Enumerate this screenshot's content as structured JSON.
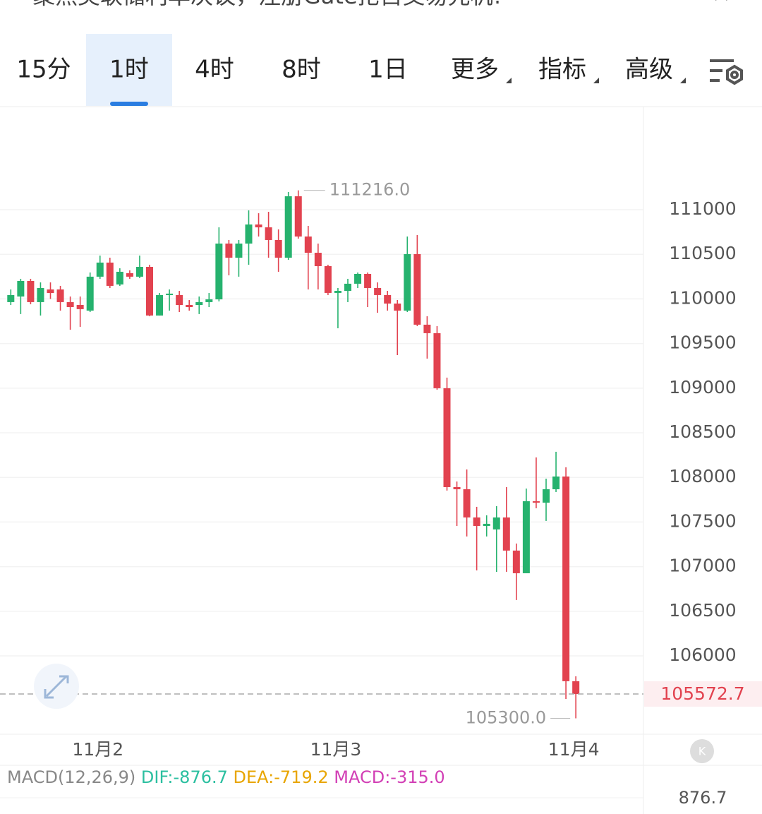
{
  "banner": "聚焦美联储利率决议，注册Gate抢占交易先机!",
  "tabs": [
    "15分",
    "1时",
    "4时",
    "8时",
    "1日",
    "更多",
    "指标",
    "高级"
  ],
  "active_tab": 1,
  "chart_data": {
    "type": "candlestick",
    "categories": [
      null,
      null,
      null,
      null,
      null,
      null,
      null,
      null,
      null,
      "11月2",
      null,
      null,
      null,
      null,
      null,
      null,
      null,
      null,
      null,
      null,
      null,
      null,
      null,
      null,
      null,
      null,
      null,
      null,
      null,
      null,
      null,
      null,
      null,
      "11月3",
      null,
      null,
      null,
      null,
      null,
      null,
      null,
      null,
      null,
      null,
      null,
      null,
      null,
      null,
      null,
      null,
      null,
      null,
      null,
      null,
      null,
      null,
      null,
      "11月4"
    ],
    "open": [
      109964,
      110027,
      110201,
      109964,
      110106,
      110106,
      109964,
      109932,
      109869,
      110249,
      110407,
      110162,
      110288,
      110249,
      110359,
      109814,
      110043,
      110043,
      109932,
      109932,
      109964,
      109995,
      110620,
      110462,
      110620,
      110834,
      110802,
      110660,
      110462,
      111150,
      110699,
      110517,
      110367,
      110067,
      110090,
      110170,
      110280,
      110122,
      110043,
      109948,
      109869,
      110502,
      109711,
      109616,
      108999,
      107891,
      107867,
      107551,
      107456,
      107417,
      107551,
      107180,
      106926,
      107733,
      107717,
      107867,
      108010,
      105716
    ],
    "close": [
      110043,
      110201,
      109964,
      110122,
      110066,
      109964,
      109908,
      109885,
      110249,
      110407,
      110146,
      110304,
      110249,
      110359,
      109814,
      110043,
      110059,
      109932,
      109908,
      109964,
      109995,
      110620,
      110462,
      110620,
      110834,
      110802,
      110660,
      110462,
      111150,
      110699,
      110517,
      110367,
      110067,
      110090,
      110170,
      110280,
      110122,
      110043,
      109948,
      109869,
      110502,
      109711,
      109616,
      108999,
      107891,
      107867,
      107551,
      107456,
      107480,
      107551,
      107180,
      106926,
      107733,
      107717,
      107867,
      108010,
      105716,
      105572.7
    ],
    "high": [
      110106,
      110225,
      110225,
      110185,
      110185,
      110146,
      110027,
      110027,
      110296,
      110486,
      110462,
      110343,
      110320,
      110486,
      110383,
      110066,
      110106,
      110090,
      109987,
      110027,
      110066,
      110802,
      110660,
      110660,
      110992,
      110960,
      110976,
      110779,
      111198,
      111216,
      110818,
      110620,
      110383,
      110122,
      110225,
      110296,
      110296,
      110185,
      110090,
      109987,
      110699,
      110715,
      109806,
      109695,
      109118,
      107954,
      108089,
      107670,
      107575,
      107678,
      107891,
      107259,
      107875,
      108224,
      107986,
      108287,
      108113,
      105771
    ],
    "low": [
      109932,
      109830,
      109940,
      109814,
      110000,
      109869,
      109655,
      109687,
      109853,
      110225,
      110122,
      110146,
      110225,
      110233,
      109806,
      109814,
      109869,
      109853,
      109869,
      109830,
      109908,
      109972,
      110264,
      110249,
      110383,
      110699,
      110462,
      110304,
      110438,
      110676,
      110106,
      110106,
      110043,
      109671,
      109964,
      110122,
      109908,
      109845,
      109869,
      109370,
      109853,
      109695,
      109331,
      108983,
      107852,
      107456,
      107338,
      106958,
      107338,
      106942,
      106942,
      106626,
      106926,
      107654,
      107512,
      107836,
      105518,
      105300
    ],
    "up_color": "#26b26e",
    "down_color": "#e2424f",
    "ylim": [
      105122,
      112147
    ],
    "yticks": [
      106000,
      106500,
      107000,
      107500,
      108000,
      108500,
      109000,
      109500,
      110000,
      110500,
      111000
    ],
    "grid": true,
    "annotations": [
      {
        "value": 111216,
        "label": "111216.0"
      },
      {
        "value": 105300,
        "label": "105300.0"
      }
    ]
  },
  "macd": {
    "label": "MACD(12,26,9)",
    "dif": "DIF:-876.7",
    "dea": "DEA:-719.2",
    "macd": "MACD:-315.0",
    "axis_label": "876.7"
  }
}
